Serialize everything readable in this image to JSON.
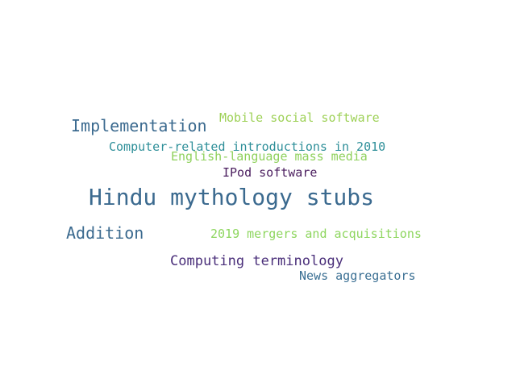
{
  "words": [
    {
      "text": "Hindu mythology stubs",
      "color": "#3b6a8f"
    },
    {
      "text": "Implementation",
      "color": "#3b6a8f"
    },
    {
      "text": "Addition",
      "color": "#3b6a8f"
    },
    {
      "text": "Computing terminology",
      "color": "#4a2f7a"
    },
    {
      "text": "Mobile social software",
      "color": "#9ed157"
    },
    {
      "text": "Computer-related introductions in 2010",
      "color": "#2e8f99"
    },
    {
      "text": "English-language mass media",
      "color": "#8fd15c"
    },
    {
      "text": "IPod software",
      "color": "#4a1d5e"
    },
    {
      "text": "2019 mergers and acquisitions",
      "color": "#8ed65f"
    },
    {
      "text": "News aggregators",
      "color": "#3a6f93"
    }
  ]
}
